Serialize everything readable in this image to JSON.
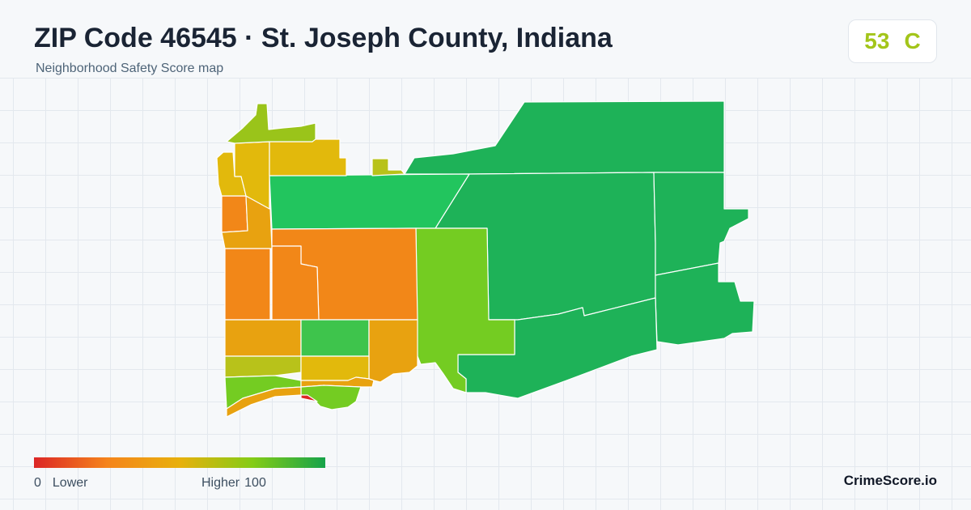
{
  "header": {
    "title": "ZIP Code 46545 · St. Joseph County, Indiana",
    "subtitle": "Neighborhood Safety Score map"
  },
  "score_badge": {
    "score": "53",
    "grade": "C",
    "color": "#a3c51a"
  },
  "map": {
    "colors": {
      "dark_green": "#1eb258",
      "bright_green": "#22c55e",
      "mid_green": "#3ec44c",
      "lime": "#74cc22",
      "yellow_green": "#9ac41a",
      "olive": "#b8c21a",
      "gold": "#e2b90c",
      "amber": "#e8a210",
      "orange": "#f28718",
      "red": "#dc2626",
      "boundary": "#ffffff"
    }
  },
  "legend": {
    "min_value": "0",
    "min_label": "Lower",
    "max_label": "Higher",
    "max_value": "100",
    "gradient": [
      "#dc2626",
      "#f5841c",
      "#e8b00c",
      "#84cc16",
      "#16a34a"
    ]
  },
  "brand": {
    "name": "CrimeScore.io"
  }
}
